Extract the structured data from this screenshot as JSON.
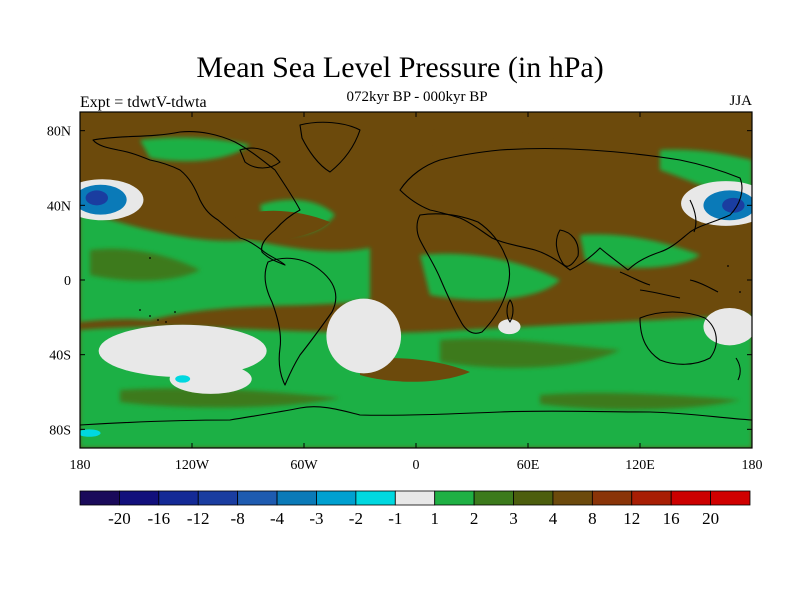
{
  "title": "Mean Sea Level Pressure (in hPa)",
  "subtitle": "072kyr BP - 000kyr BP",
  "left_label": "Expt = tdwtV-tdwta",
  "right_label": "JJA",
  "map": {
    "projection": "cylindrical-equidistant",
    "lon_range": [
      -180,
      180
    ],
    "lat_range": [
      -90,
      90
    ],
    "x_ticks": [
      {
        "lon": -180,
        "label": "180"
      },
      {
        "lon": -120,
        "label": "120W"
      },
      {
        "lon": -60,
        "label": "60W"
      },
      {
        "lon": 0,
        "label": "0"
      },
      {
        "lon": 60,
        "label": "60E"
      },
      {
        "lon": 120,
        "label": "120E"
      },
      {
        "lon": 180,
        "label": "180"
      }
    ],
    "y_ticks": [
      {
        "lat": 80,
        "label": "80N"
      },
      {
        "lat": 40,
        "label": "40N"
      },
      {
        "lat": 0,
        "label": "0"
      },
      {
        "lat": -40,
        "label": "40S"
      },
      {
        "lat": -80,
        "label": "80S"
      }
    ],
    "background_color": "#6c4a0c",
    "features": [
      {
        "name": "north-pacific-low-west",
        "color": "#e8e8e8",
        "lon": -168,
        "lat": 43,
        "rlon": 22,
        "rlat": 11
      },
      {
        "name": "north-pacific-low-west-inner",
        "color": "#0a7ab8",
        "lon": -169,
        "lat": 43,
        "rlon": 14,
        "rlat": 8
      },
      {
        "name": "north-pacific-low-west-core",
        "color": "#1a3da0",
        "lon": -171,
        "lat": 44,
        "rlon": 6,
        "rlat": 4
      },
      {
        "name": "north-pacific-low-east",
        "color": "#e8e8e8",
        "lon": 166,
        "lat": 41,
        "rlon": 24,
        "rlat": 12
      },
      {
        "name": "north-pacific-low-east-inner",
        "color": "#0a7ab8",
        "lon": 168,
        "lat": 40,
        "rlon": 14,
        "rlat": 8
      },
      {
        "name": "north-pacific-low-east-core",
        "color": "#1a3da0",
        "lon": 170,
        "lat": 40,
        "rlon": 6,
        "rlat": 4
      },
      {
        "name": "south-pacific-decrease",
        "color": "#e8e8e8",
        "lon": -125,
        "lat": -38,
        "rlon": 45,
        "rlat": 14
      },
      {
        "name": "south-atlantic-decrease",
        "color": "#e8e8e8",
        "lon": -28,
        "lat": -30,
        "rlon": 20,
        "rlat": 20
      },
      {
        "name": "southeast-pacific-decrease",
        "color": "#e8e8e8",
        "lon": -110,
        "lat": -53,
        "rlon": 22,
        "rlat": 8
      },
      {
        "name": "south-indian-decrease",
        "color": "#e8e8e8",
        "lon": 50,
        "lat": -25,
        "rlon": 6,
        "rlat": 4
      },
      {
        "name": "southwest-pacific-decrease",
        "color": "#e8e8e8",
        "lon": 168,
        "lat": -25,
        "rlon": 14,
        "rlat": 10
      },
      {
        "name": "south-pacific-cyan-spot",
        "color": "#00d8e0",
        "lon": -125,
        "lat": -53,
        "rlon": 4,
        "rlat": 2
      },
      {
        "name": "antarctic-cyan-spot",
        "color": "#00d8e0",
        "lon": -175,
        "lat": -82,
        "rlon": 6,
        "rlat": 2
      }
    ]
  },
  "colorbar": {
    "levels": [
      "-20",
      "-16",
      "-12",
      "-8",
      "-4",
      "-3",
      "-2",
      "-1",
      "1",
      "2",
      "3",
      "4",
      "8",
      "12",
      "16",
      "20"
    ],
    "colors": [
      "#1a0a5a",
      "#12107c",
      "#142a96",
      "#1a3da0",
      "#1e5bb0",
      "#0a7ab8",
      "#00a0d0",
      "#00d8e0",
      "#e8e8e8",
      "#1fb044",
      "#3c7a1c",
      "#4c5e0e",
      "#6c4a0c",
      "#8a3408",
      "#a81e04",
      "#cc0000",
      "#d00000"
    ]
  }
}
